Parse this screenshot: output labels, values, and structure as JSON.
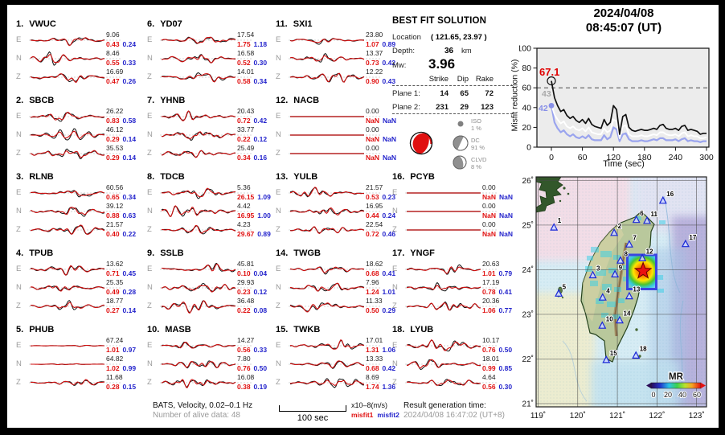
{
  "stations": [
    {
      "num": "1.",
      "code": "VWUC",
      "channels": [
        {
          "ch": "E",
          "amp": "9.06",
          "m1": "0.43",
          "m2": "0.24"
        },
        {
          "ch": "N",
          "amp": "8.46",
          "m1": "0.55",
          "m2": "0.33"
        },
        {
          "ch": "Z",
          "amp": "16.69",
          "m1": "0.47",
          "m2": "0.26"
        }
      ]
    },
    {
      "num": "2.",
      "code": "SBCB",
      "channels": [
        {
          "ch": "E",
          "amp": "26.22",
          "m1": "0.83",
          "m2": "0.58"
        },
        {
          "ch": "N",
          "amp": "46.12",
          "m1": "0.29",
          "m2": "0.14"
        },
        {
          "ch": "Z",
          "amp": "35.53",
          "m1": "0.29",
          "m2": "0.14"
        }
      ]
    },
    {
      "num": "3.",
      "code": "RLNB",
      "channels": [
        {
          "ch": "E",
          "amp": "60.56",
          "m1": "0.65",
          "m2": "0.34"
        },
        {
          "ch": "N",
          "amp": "39.12",
          "m1": "0.88",
          "m2": "0.63"
        },
        {
          "ch": "Z",
          "amp": "21.57",
          "m1": "0.40",
          "m2": "0.22"
        }
      ]
    },
    {
      "num": "4.",
      "code": "TPUB",
      "channels": [
        {
          "ch": "E",
          "amp": "13.62",
          "m1": "0.71",
          "m2": "0.45"
        },
        {
          "ch": "N",
          "amp": "25.35",
          "m1": "0.49",
          "m2": "0.28"
        },
        {
          "ch": "Z",
          "amp": "18.77",
          "m1": "0.27",
          "m2": "0.14"
        }
      ]
    },
    {
      "num": "5.",
      "code": "PHUB",
      "channels": [
        {
          "ch": "E",
          "amp": "67.24",
          "m1": "1.01",
          "m2": "0.97",
          "quiet": true
        },
        {
          "ch": "N",
          "amp": "64.82",
          "m1": "1.02",
          "m2": "0.99",
          "quiet": true
        },
        {
          "ch": "Z",
          "amp": "11.68",
          "m1": "0.28",
          "m2": "0.15"
        }
      ]
    },
    {
      "num": "6.",
      "code": "YD07",
      "channels": [
        {
          "ch": "E",
          "amp": "17.54",
          "m1": "1.75",
          "m2": "1.18"
        },
        {
          "ch": "N",
          "amp": "16.58",
          "m1": "0.52",
          "m2": "0.30"
        },
        {
          "ch": "Z",
          "amp": "14.01",
          "m1": "0.58",
          "m2": "0.34"
        }
      ]
    },
    {
      "num": "7.",
      "code": "YHNB",
      "channels": [
        {
          "ch": "E",
          "amp": "20.43",
          "m1": "0.72",
          "m2": "0.42"
        },
        {
          "ch": "N",
          "amp": "33.77",
          "m1": "0.22",
          "m2": "0.12"
        },
        {
          "ch": "Z",
          "amp": "25.49",
          "m1": "0.34",
          "m2": "0.16"
        }
      ]
    },
    {
      "num": "8.",
      "code": "TDCB",
      "channels": [
        {
          "ch": "E",
          "amp": "5.36",
          "m1": "26.15",
          "m2": "1.09"
        },
        {
          "ch": "N",
          "amp": "4.42",
          "m1": "16.95",
          "m2": "1.00"
        },
        {
          "ch": "Z",
          "amp": "4.23",
          "m1": "29.67",
          "m2": "0.89"
        }
      ]
    },
    {
      "num": "9.",
      "code": "SSLB",
      "channels": [
        {
          "ch": "E",
          "amp": "45.81",
          "m1": "0.10",
          "m2": "0.04"
        },
        {
          "ch": "N",
          "amp": "29.93",
          "m1": "0.23",
          "m2": "0.12"
        },
        {
          "ch": "Z",
          "amp": "36.48",
          "m1": "0.22",
          "m2": "0.08"
        }
      ]
    },
    {
      "num": "10.",
      "code": "MASB",
      "channels": [
        {
          "ch": "E",
          "amp": "14.27",
          "m1": "0.56",
          "m2": "0.33"
        },
        {
          "ch": "N",
          "amp": "7.80",
          "m1": "0.76",
          "m2": "0.50"
        },
        {
          "ch": "Z",
          "amp": "16.08",
          "m1": "0.38",
          "m2": "0.19"
        }
      ]
    },
    {
      "num": "11.",
      "code": "SXI1",
      "channels": [
        {
          "ch": "E",
          "amp": "23.80",
          "m1": "1.07",
          "m2": "0.89"
        },
        {
          "ch": "N",
          "amp": "13.37",
          "m1": "0.73",
          "m2": "0.42"
        },
        {
          "ch": "Z",
          "amp": "12.22",
          "m1": "0.90",
          "m2": "0.43"
        }
      ]
    },
    {
      "num": "12.",
      "code": "NACB",
      "channels": [
        {
          "ch": "E",
          "amp": "0.00",
          "m1": "NaN",
          "m2": "NaN"
        },
        {
          "ch": "N",
          "amp": "0.00",
          "m1": "NaN",
          "m2": "NaN"
        },
        {
          "ch": "Z",
          "amp": "0.00",
          "m1": "NaN",
          "m2": "NaN"
        }
      ]
    },
    {
      "num": "13.",
      "code": "YULB",
      "channels": [
        {
          "ch": "E",
          "amp": "21.57",
          "m1": "0.53",
          "m2": "0.23"
        },
        {
          "ch": "N",
          "amp": "16.95",
          "m1": "0.44",
          "m2": "0.24"
        },
        {
          "ch": "Z",
          "amp": "22.54",
          "m1": "0.72",
          "m2": "0.46"
        }
      ]
    },
    {
      "num": "14.",
      "code": "TWGB",
      "channels": [
        {
          "ch": "E",
          "amp": "18.62",
          "m1": "0.68",
          "m2": "0.41"
        },
        {
          "ch": "N",
          "amp": "7.96",
          "m1": "1.24",
          "m2": "1.01"
        },
        {
          "ch": "Z",
          "amp": "11.33",
          "m1": "0.50",
          "m2": "0.29"
        }
      ]
    },
    {
      "num": "15.",
      "code": "TWKB",
      "channels": [
        {
          "ch": "E",
          "amp": "17.01",
          "m1": "1.31",
          "m2": "1.06"
        },
        {
          "ch": "N",
          "amp": "13.33",
          "m1": "0.68",
          "m2": "0.42"
        },
        {
          "ch": "Z",
          "amp": "8.69",
          "m1": "1.74",
          "m2": "1.36"
        }
      ]
    },
    {
      "num": "16.",
      "code": "PCYB",
      "channels": [
        {
          "ch": "E",
          "amp": "0.00",
          "m1": "NaN",
          "m2": "NaN"
        },
        {
          "ch": "N",
          "amp": "0.00",
          "m1": "NaN",
          "m2": "NaN"
        },
        {
          "ch": "Z",
          "amp": "0.00",
          "m1": "NaN",
          "m2": "NaN"
        }
      ]
    },
    {
      "num": "17.",
      "code": "YNGF",
      "channels": [
        {
          "ch": "E",
          "amp": "20.63",
          "m1": "1.01",
          "m2": "0.79"
        },
        {
          "ch": "N",
          "amp": "17.19",
          "m1": "0.78",
          "m2": "0.41"
        },
        {
          "ch": "Z",
          "amp": "20.36",
          "m1": "1.06",
          "m2": "0.77"
        }
      ]
    },
    {
      "num": "18.",
      "code": "LYUB",
      "channels": [
        {
          "ch": "E",
          "amp": "10.17",
          "m1": "0.76",
          "m2": "0.50"
        },
        {
          "ch": "N",
          "amp": "18.01",
          "m1": "0.99",
          "m2": "0.85"
        },
        {
          "ch": "Z",
          "amp": "4.64",
          "m1": "0.56",
          "m2": "0.30"
        }
      ]
    }
  ],
  "solution": {
    "title": "BEST FIT SOLUTION",
    "location_label": "Location",
    "location_value": "( 121.65,  23.97 )",
    "depth_label": "Depth:",
    "depth_value": "36",
    "depth_unit": "km",
    "mw_label": "Mw:",
    "mw_value": "3.96",
    "col_headers": [
      "Strike",
      "Dip",
      "Rake"
    ],
    "planes": [
      {
        "name": "Plane 1:",
        "strike": "14",
        "dip": "65",
        "rake": "72"
      },
      {
        "name": "Plane 2:",
        "strike": "231",
        "dip": "29",
        "rake": "123"
      }
    ],
    "decomposition": [
      {
        "name": "ISO",
        "pct": "1 %"
      },
      {
        "name": "DC",
        "pct": "91 %"
      },
      {
        "name": "CLVD",
        "pct": "8 %"
      }
    ],
    "beachball_color": "#e01010"
  },
  "misfit_plot": {
    "title_line1": "2024/04/08",
    "title_line2": "08:45:07  (UT)",
    "ylabel": "Misfit reduction (%)",
    "xlabel": "Time (sec)",
    "yticks": [
      0,
      20,
      40,
      60,
      80,
      100
    ],
    "xticks": [
      0,
      60,
      120,
      180,
      240,
      300
    ],
    "threshold": 60,
    "ann_black": "67.1",
    "ann_white": "43",
    "ann_blue": "42",
    "ann_black_color": "#e00000",
    "ann_white_color": "#a8a8a8",
    "ann_blue_color": "#8890e8"
  },
  "chart_data": {
    "type": "line",
    "title": "2024/04/08 08:45:07 (UT)",
    "xlabel": "Time (sec)",
    "ylabel": "Misfit reduction (%)",
    "xlim": [
      0,
      300
    ],
    "ylim": [
      0,
      100
    ],
    "dashed_line_y": 60,
    "legend_position": "none",
    "grid": false,
    "x": [
      0,
      6,
      12,
      18,
      24,
      30,
      36,
      42,
      48,
      54,
      60,
      66,
      72,
      78,
      84,
      90,
      96,
      102,
      108,
      114,
      120,
      126,
      132,
      138,
      144,
      150,
      156,
      162,
      168,
      174,
      180,
      186,
      192,
      198,
      204,
      210,
      216,
      222,
      228,
      234,
      240,
      246,
      252,
      258,
      264,
      270,
      276,
      282,
      288,
      294,
      300
    ],
    "series": [
      {
        "name": "curve_black",
        "color": "#111111",
        "start_label": 67.1,
        "values": [
          67,
          50,
          42,
          36,
          38,
          32,
          29,
          31,
          27,
          25,
          28,
          24,
          29,
          23,
          21,
          20,
          19,
          28,
          22,
          25,
          42,
          38,
          13,
          31,
          33,
          20,
          17,
          16,
          17,
          18,
          17,
          17,
          18,
          19,
          18,
          22,
          23,
          19,
          18,
          18,
          19,
          17,
          21,
          22,
          17,
          18,
          17,
          16,
          13,
          14,
          14
        ]
      },
      {
        "name": "curve_white",
        "color": "#ffffff",
        "start_label": 43,
        "values": [
          43,
          33,
          28,
          24,
          26,
          21,
          19,
          21,
          18,
          17,
          19,
          16,
          20,
          15,
          14,
          13,
          13,
          19,
          15,
          17,
          28,
          26,
          9,
          21,
          22,
          13,
          11,
          11,
          11,
          12,
          11,
          11,
          12,
          13,
          12,
          15,
          15,
          13,
          12,
          12,
          13,
          11,
          14,
          15,
          11,
          12,
          11,
          11,
          9,
          9,
          10
        ]
      },
      {
        "name": "curve_blue",
        "color": "#9aa4ee",
        "start_label": 42,
        "values": [
          42,
          25,
          19,
          15,
          17,
          13,
          11,
          13,
          10,
          9,
          11,
          9,
          12,
          8,
          7,
          7,
          7,
          12,
          8,
          10,
          20,
          18,
          6,
          13,
          14,
          8,
          6,
          6,
          6,
          7,
          6,
          6,
          7,
          8,
          7,
          9,
          9,
          7,
          7,
          7,
          8,
          6,
          8,
          9,
          6,
          7,
          6,
          6,
          5,
          6,
          6
        ]
      }
    ]
  },
  "map": {
    "lat_ticks": [
      "26˚",
      "25˚",
      "24˚",
      "23˚",
      "22˚",
      "21˚"
    ],
    "lon_ticks": [
      "119˚",
      "120˚",
      "121˚",
      "122˚",
      "123˚"
    ],
    "epicenter": {
      "lon": 121.65,
      "lat": 23.97
    },
    "stations": [
      {
        "n": "1",
        "lon": 119.4,
        "lat": 24.95
      },
      {
        "n": "2",
        "lon": 120.92,
        "lat": 24.83
      },
      {
        "n": "3",
        "lon": 120.38,
        "lat": 23.88
      },
      {
        "n": "4",
        "lon": 120.63,
        "lat": 23.38
      },
      {
        "n": "5",
        "lon": 119.52,
        "lat": 23.47
      },
      {
        "n": "6",
        "lon": 121.48,
        "lat": 25.12
      },
      {
        "n": "7",
        "lon": 121.3,
        "lat": 24.57
      },
      {
        "n": "8",
        "lon": 121.08,
        "lat": 24.21
      },
      {
        "n": "9",
        "lon": 120.94,
        "lat": 23.9
      },
      {
        "n": "10",
        "lon": 120.62,
        "lat": 22.75
      },
      {
        "n": "11",
        "lon": 121.75,
        "lat": 25.1
      },
      {
        "n": "12",
        "lon": 121.63,
        "lat": 24.26
      },
      {
        "n": "13",
        "lon": 121.3,
        "lat": 23.41
      },
      {
        "n": "14",
        "lon": 121.06,
        "lat": 22.87
      },
      {
        "n": "15",
        "lon": 120.72,
        "lat": 21.98
      },
      {
        "n": "16",
        "lon": 122.15,
        "lat": 25.55
      },
      {
        "n": "17",
        "lon": 122.72,
        "lat": 24.58
      },
      {
        "n": "18",
        "lon": 121.47,
        "lat": 22.08
      }
    ],
    "colorbar": {
      "label": "MR",
      "ticks": [
        "0",
        "20",
        "40",
        "60"
      ]
    }
  },
  "footer": {
    "info_line1": "BATS, Velocity, 0.02–0.1 Hz",
    "info_line2": "Number of alive data: 48",
    "scalebar_label": "100 sec",
    "unit_label": "x10–8(m/s)",
    "legend_misfit1": "misfit1",
    "legend_misfit2": "misfit2",
    "result_label": "Result generation time:",
    "result_time": "2024/04/08 16:47:02 (UT+8)"
  }
}
